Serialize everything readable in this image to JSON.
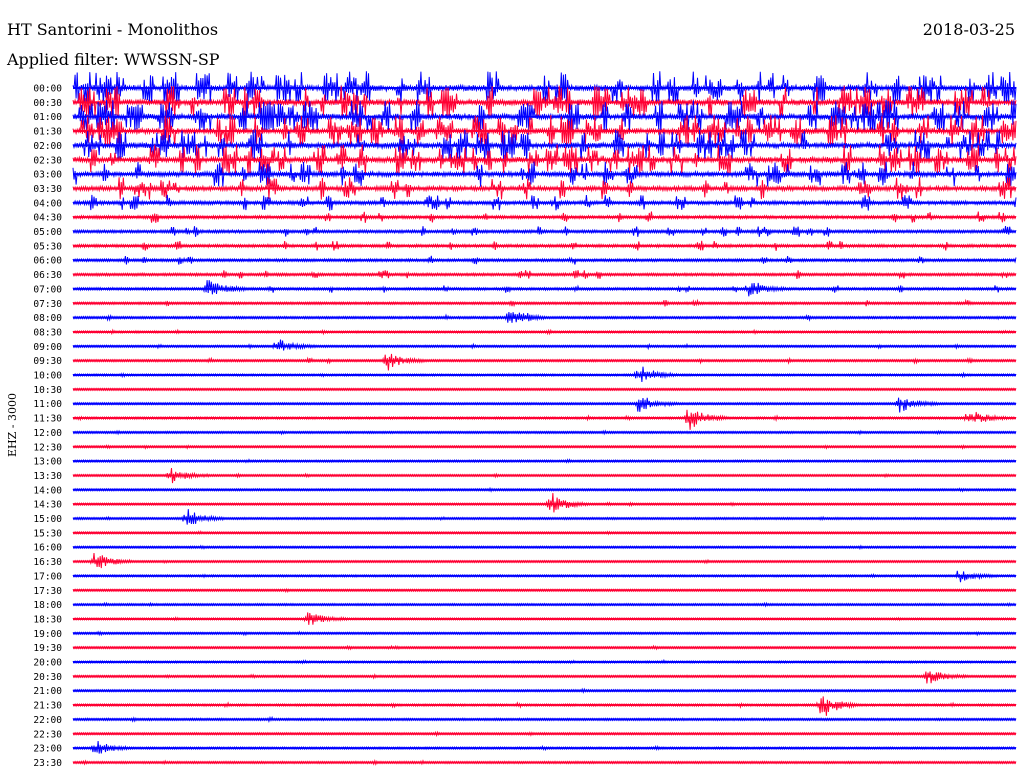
{
  "header": {
    "station": "HT Santorini - Monolithos",
    "date": "2018-03-25",
    "filter": "Applied filter: WWSSN-SP"
  },
  "chart_data": {
    "type": "seismogram",
    "ylabel": "EHZ - 3000",
    "colors": {
      "even": "#0000ff",
      "odd": "#ff0033"
    },
    "rows": [
      "00:00",
      "00:30",
      "01:00",
      "01:30",
      "02:00",
      "02:30",
      "03:00",
      "03:30",
      "04:00",
      "04:30",
      "05:00",
      "05:30",
      "06:00",
      "06:30",
      "07:00",
      "07:30",
      "08:00",
      "08:30",
      "09:00",
      "09:30",
      "10:00",
      "10:30",
      "11:00",
      "11:30",
      "12:00",
      "12:30",
      "13:00",
      "13:30",
      "14:00",
      "14:30",
      "15:00",
      "15:30",
      "16:00",
      "16:30",
      "17:00",
      "17:30",
      "18:00",
      "18:30",
      "19:00",
      "19:30",
      "20:00",
      "20:30",
      "21:00",
      "21:30",
      "22:00",
      "22:30",
      "23:00",
      "23:30"
    ],
    "activity": [
      1.0,
      1.0,
      1.0,
      0.95,
      0.95,
      0.9,
      0.75,
      0.65,
      0.45,
      0.3,
      0.28,
      0.26,
      0.22,
      0.22,
      0.18,
      0.15,
      0.12,
      0.06,
      0.08,
      0.1,
      0.06,
      0.05,
      0.06,
      0.08,
      0.05,
      0.05,
      0.04,
      0.05,
      0.05,
      0.05,
      0.04,
      0.04,
      0.04,
      0.04,
      0.04,
      0.04,
      0.04,
      0.04,
      0.05,
      0.05,
      0.05,
      0.06,
      0.05,
      0.08,
      0.08,
      0.06,
      0.06,
      0.06
    ],
    "events": [
      {
        "row": "07:00",
        "minute": 4.3,
        "amp": 0.6
      },
      {
        "row": "07:00",
        "minute": 21.5,
        "amp": 0.4
      },
      {
        "row": "08:00",
        "minute": 13.9,
        "amp": 0.5
      },
      {
        "row": "09:00",
        "minute": 6.5,
        "amp": 0.4
      },
      {
        "row": "09:30",
        "minute": 10.0,
        "amp": 0.5
      },
      {
        "row": "10:00",
        "minute": 18.0,
        "amp": 0.6
      },
      {
        "row": "11:00",
        "minute": 18.0,
        "amp": 0.5
      },
      {
        "row": "11:00",
        "minute": 26.3,
        "amp": 0.5
      },
      {
        "row": "11:30",
        "minute": 19.6,
        "amp": 0.8
      },
      {
        "row": "11:30",
        "minute": 28.5,
        "amp": 0.5
      },
      {
        "row": "13:30",
        "minute": 3.1,
        "amp": 0.4
      },
      {
        "row": "14:30",
        "minute": 15.2,
        "amp": 0.6
      },
      {
        "row": "15:00",
        "minute": 3.6,
        "amp": 0.5
      },
      {
        "row": "16:30",
        "minute": 0.7,
        "amp": 0.5
      },
      {
        "row": "17:00",
        "minute": 28.2,
        "amp": 0.4
      },
      {
        "row": "18:30",
        "minute": 7.5,
        "amp": 0.4
      },
      {
        "row": "20:30",
        "minute": 27.2,
        "amp": 0.4
      },
      {
        "row": "21:30",
        "minute": 23.8,
        "amp": 0.8
      },
      {
        "row": "23:00",
        "minute": 0.7,
        "amp": 0.4
      }
    ]
  }
}
